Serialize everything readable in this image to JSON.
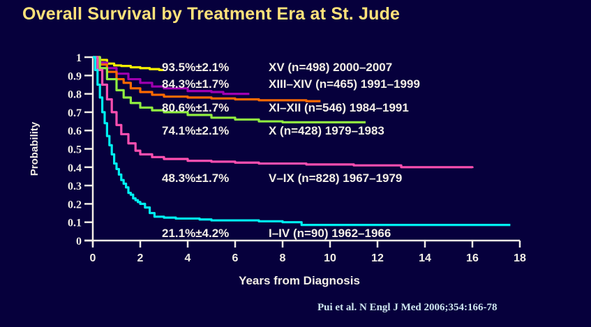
{
  "chart_data": {
    "type": "line",
    "title": "Overall Survival by Treatment Era at St. Jude",
    "xlabel": "Years from Diagnosis",
    "ylabel": "Probability",
    "xlim": [
      0,
      18
    ],
    "ylim": [
      0,
      1
    ],
    "xticks": [
      "0",
      "2",
      "4",
      "6",
      "8",
      "10",
      "12",
      "14",
      "16",
      "18"
    ],
    "yticks": [
      "0",
      "0.1",
      "0.2",
      "0.3",
      "0.4",
      "0.5",
      "0.6",
      "0.7",
      "0.8",
      "0.9",
      "1"
    ],
    "grid": false,
    "series": [
      {
        "name": "XV (n=498) 2000–2007",
        "survival": "93.5%±2.1%",
        "protocol": "XV (n=498) 2000–2007",
        "color": "#f5f000",
        "x": [
          0,
          0.3,
          0.6,
          0.9,
          1.2,
          1.6,
          2.0,
          2.4,
          2.8,
          3.0
        ],
        "y": [
          1.0,
          0.985,
          0.965,
          0.955,
          0.952,
          0.945,
          0.94,
          0.935,
          0.93,
          0.93
        ]
      },
      {
        "name": "XIII–XIV (n=465) 1991–1999",
        "survival": "84.3%±1.7%",
        "protocol": "XIII–XIV (n=465) 1991–1999",
        "color": "#a000b0",
        "x": [
          0,
          0.3,
          0.6,
          1.0,
          1.5,
          2.0,
          2.5,
          3.0,
          4.0,
          5.0,
          5.5,
          6.0,
          6.6
        ],
        "y": [
          1.0,
          0.97,
          0.94,
          0.91,
          0.88,
          0.86,
          0.84,
          0.83,
          0.815,
          0.81,
          0.8,
          0.8,
          0.8
        ]
      },
      {
        "name": "XI–XII (n=546) 1984–1991",
        "survival": "80.6%±1.7%",
        "protocol": "XI–XII (n=546) 1984–1991",
        "color": "#ff6a00",
        "x": [
          0,
          0.3,
          0.6,
          1.0,
          1.3,
          1.6,
          2.0,
          2.5,
          3.0,
          4.0,
          5.0,
          6.0,
          7.0,
          8.0,
          9.0,
          9.6
        ],
        "y": [
          1.0,
          0.96,
          0.92,
          0.88,
          0.86,
          0.83,
          0.81,
          0.795,
          0.785,
          0.78,
          0.775,
          0.77,
          0.765,
          0.765,
          0.76,
          0.76
        ]
      },
      {
        "name": "X (n=428) 1979–1983",
        "survival": "74.1%±2.1%",
        "protocol": "X (n=428) 1979–1983",
        "color": "#90ee40",
        "x": [
          0,
          0.3,
          0.6,
          1.0,
          1.3,
          1.6,
          2.0,
          2.5,
          3.0,
          4.0,
          5.0,
          6.0,
          7.0,
          8.0,
          9.0,
          10.0,
          11.5
        ],
        "y": [
          1.0,
          0.94,
          0.88,
          0.82,
          0.78,
          0.75,
          0.725,
          0.71,
          0.7,
          0.685,
          0.67,
          0.66,
          0.65,
          0.645,
          0.645,
          0.645,
          0.645
        ]
      },
      {
        "name": "V–IX (n=828) 1967–1979",
        "survival": "48.3%±1.7%",
        "protocol": "V–IX (n=828) 1967–1979",
        "color": "#ff4fb0",
        "x": [
          0,
          0.2,
          0.4,
          0.6,
          0.8,
          1.0,
          1.2,
          1.5,
          1.8,
          2.0,
          2.5,
          3.0,
          4.0,
          5.0,
          6.0,
          7.0,
          8.0,
          9.0,
          10.0,
          11.0,
          12.0,
          13.0,
          14.0,
          15.0,
          16.0
        ],
        "y": [
          1.0,
          0.93,
          0.85,
          0.77,
          0.7,
          0.63,
          0.58,
          0.53,
          0.49,
          0.47,
          0.455,
          0.445,
          0.435,
          0.43,
          0.425,
          0.42,
          0.42,
          0.415,
          0.415,
          0.41,
          0.41,
          0.4,
          0.4,
          0.4,
          0.395
        ]
      },
      {
        "name": "I–IV (n=90) 1962–1966",
        "survival": "21.1%±4.2%",
        "protocol": "I–IV (n=90) 1962–1966",
        "color": "#00f0f0",
        "x": [
          0,
          0.1,
          0.2,
          0.3,
          0.4,
          0.5,
          0.6,
          0.7,
          0.8,
          0.9,
          1.0,
          1.1,
          1.2,
          1.3,
          1.4,
          1.5,
          1.6,
          1.7,
          1.8,
          1.9,
          2.0,
          2.2,
          2.4,
          2.6,
          3.0,
          3.5,
          4.0,
          4.5,
          5.0,
          6.0,
          7.0,
          8.0,
          8.8,
          10.0,
          12.0,
          14.0,
          16.0,
          17.6
        ],
        "y": [
          1.0,
          0.93,
          0.85,
          0.78,
          0.7,
          0.64,
          0.57,
          0.52,
          0.47,
          0.42,
          0.39,
          0.36,
          0.33,
          0.31,
          0.29,
          0.26,
          0.25,
          0.23,
          0.22,
          0.21,
          0.2,
          0.18,
          0.15,
          0.13,
          0.125,
          0.12,
          0.12,
          0.115,
          0.11,
          0.11,
          0.105,
          0.1,
          0.085,
          0.085,
          0.085,
          0.085,
          0.085,
          0.085
        ]
      }
    ]
  },
  "citation": "Pui et al. N Engl J Med 2006;354:166-78"
}
